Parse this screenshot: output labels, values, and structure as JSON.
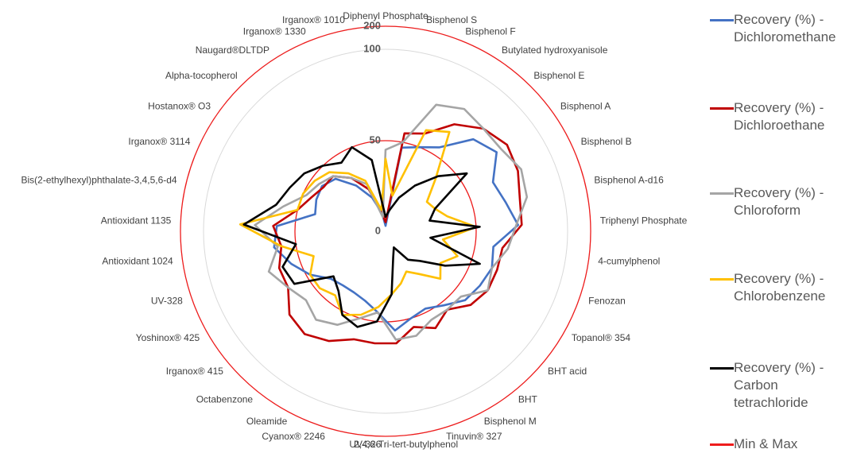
{
  "chart_data": {
    "type": "radar",
    "categories": [
      "Diphenyl Phosphate",
      "Bisphenol S",
      "Bisphenol F",
      "Butylated hydroxyanisole",
      "Bisphenol E",
      "Bisphenol A",
      "Bisphenol B",
      "Bisphenol A-d16",
      "Triphenyl Phosphate",
      "4-cumylphenol",
      "Fenozan",
      "Topanol® 354",
      "BHT acid",
      "BHT",
      "Bisphenol M",
      "Tinuvin® 327",
      "2,4,6-Tri-tert-butylphenol",
      "UV-326",
      "Cyanox® 2246",
      "Oleamide",
      "Octabenzone",
      "Irganox® 415",
      "Yoshinox® 425",
      "UV-328",
      "Antioxidant 1024",
      "Antioxidant 1135",
      "Bis(2-ethylhexyl)phthalate-3,4,5,6-d4",
      "Irganox® 3114",
      "Hostanox® O3",
      "Alpha-tocopherol",
      "Naugard®DLTDP",
      "Irganox® 1330",
      "Irganox® 1010"
    ],
    "rlim": [
      0,
      200
    ],
    "rticks": [
      0,
      50,
      100,
      200
    ],
    "series": [
      {
        "name": "Recovery (%) - Dichloromethane",
        "color": "#4472c4",
        "values": [
          3,
          47,
          50,
          55,
          70,
          75,
          65,
          68,
          73,
          60,
          62,
          60,
          58,
          52,
          48,
          50,
          55,
          45,
          40,
          38,
          38,
          40,
          48,
          55,
          62,
          60,
          40,
          42,
          43,
          40,
          30,
          20,
          10
        ]
      },
      {
        "name": "Recovery (%) - Dichloroethane",
        "color": "#c00000",
        "values": [
          5,
          55,
          58,
          70,
          78,
          82,
          80,
          76,
          75,
          65,
          65,
          65,
          62,
          55,
          60,
          55,
          62,
          62,
          62,
          68,
          72,
          70,
          62,
          62,
          58,
          62,
          50,
          45,
          42,
          42,
          35,
          25,
          10
        ]
      },
      {
        "name": "Recovery (%) - Chloroform",
        "color": "#a5a5a5",
        "values": [
          45,
          50,
          75,
          80,
          78,
          78,
          82,
          80,
          72,
          68,
          62,
          65,
          55,
          55,
          55,
          60,
          60,
          45,
          50,
          58,
          62,
          58,
          62,
          68,
          60,
          72,
          58,
          48,
          45,
          42,
          35,
          28,
          8
        ]
      },
      {
        "name": "Recovery (%) - Chlorobenzene",
        "color": "#ffc000",
        "values": [
          40,
          20,
          60,
          65,
          40,
          28,
          30,
          35,
          50,
          32,
          42,
          35,
          40,
          30,
          25,
          30,
          35,
          42,
          48,
          52,
          45,
          48,
          48,
          42,
          58,
          80,
          50,
          50,
          48,
          45,
          38,
          30,
          12
        ]
      },
      {
        "name": "Recovery (%) - Carbon tetrachloride",
        "color": "#000000",
        "values": [
          8,
          12,
          20,
          30,
          42,
          55,
          30,
          25,
          52,
          25,
          55,
          38,
          25,
          20,
          10,
          15,
          35,
          50,
          55,
          52,
          42,
          38,
          58,
          60,
          50,
          78,
          62,
          58,
          55,
          50,
          45,
          50,
          40
        ]
      }
    ],
    "min_max": {
      "name": "Min & Max",
      "color": "#ee1c1c",
      "values": [
        50,
        200
      ]
    }
  }
}
